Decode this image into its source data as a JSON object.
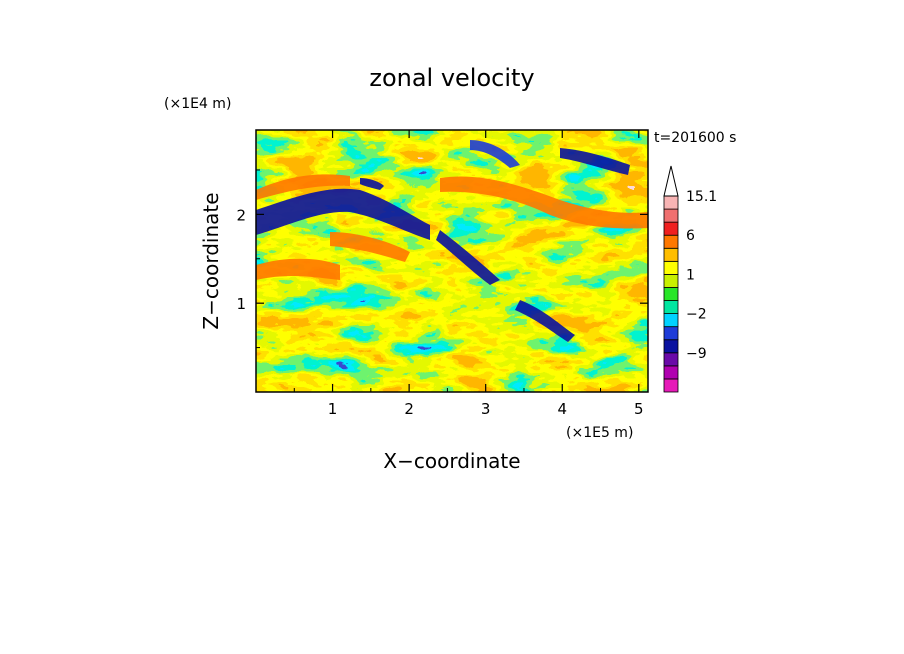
{
  "chart_data": {
    "type": "heatmap",
    "title": "zonal velocity",
    "xlabel": "X−coordinate",
    "ylabel": "Z−coordinate",
    "x_scale_label": "(×1E5 m)",
    "y_scale_label": "(×1E4 m)",
    "time_label": "t=201600 s",
    "xlim": [
      0,
      5.12
    ],
    "ylim": [
      0,
      2.95
    ],
    "x_ticks": [
      1,
      2,
      3,
      4,
      5
    ],
    "y_ticks": [
      1,
      2
    ],
    "colorbar": {
      "levels": [
        -15,
        -12,
        -9,
        -6,
        -3,
        -2,
        -1,
        0,
        1,
        2,
        3,
        6,
        9,
        12,
        15.1
      ],
      "labels": [
        {
          "value": 15.1,
          "text": "15.1"
        },
        {
          "value": 6,
          "text": "6"
        },
        {
          "value": 1,
          "text": "1"
        },
        {
          "value": -2,
          "text": "−2"
        },
        {
          "value": -9,
          "text": "−9"
        }
      ],
      "colors": [
        "#e61ab8",
        "#b000b0",
        "#6a0aa8",
        "#0a12a0",
        "#1e3cd8",
        "#00d2ff",
        "#00e6a0",
        "#28e628",
        "#c8f000",
        "#ffff00",
        "#ffbe00",
        "#ff7800",
        "#f02020",
        "#f07070",
        "#f8b4b4"
      ],
      "extend": "max"
    }
  }
}
